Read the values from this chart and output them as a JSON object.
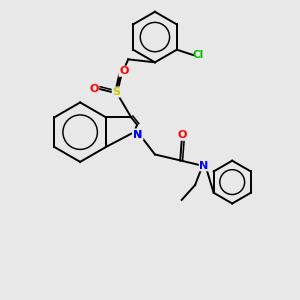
{
  "bg_color": "#e8e8e8",
  "bond_color": "#000000",
  "N_color": "#0000ff",
  "O_color": "#ff0000",
  "S_color": "#cccc00",
  "Cl_color": "#00bb00",
  "line_width": 1.4,
  "figsize": [
    3.0,
    3.0
  ],
  "dpi": 100,
  "xlim": [
    0,
    10
  ],
  "ylim": [
    0,
    10
  ]
}
